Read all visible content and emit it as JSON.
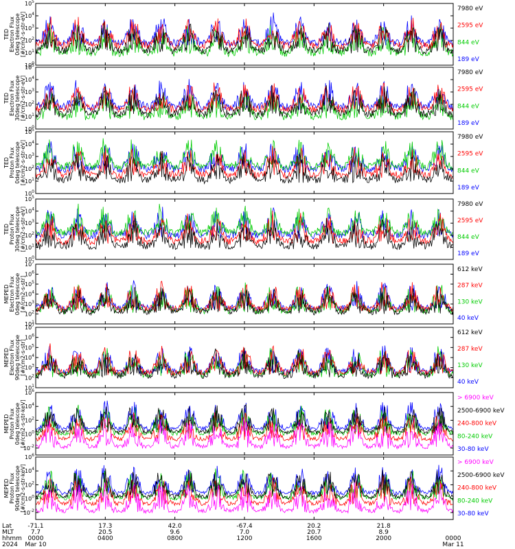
{
  "chart_data": [
    {
      "type": "line",
      "ylabel": [
        "TED",
        "Electron Flux",
        "0deg telescope",
        "[#/cm2-s-str-eV]"
      ],
      "ylim": [
        1,
        100000
      ],
      "log": true,
      "tick_labels": [
        "10^0",
        "10^1",
        "10^2",
        "10^3",
        "10^4",
        "10^5"
      ],
      "series": [
        {
          "name": "7980 eV",
          "color": "#000000"
        },
        {
          "name": "2595 eV",
          "color": "#ff0000"
        },
        {
          "name": "844 eV",
          "color": "#00cc00"
        },
        {
          "name": "189 eV",
          "color": "#0000ff"
        }
      ]
    },
    {
      "type": "line",
      "ylabel": [
        "TED",
        "Electron Flux",
        "30deg telescope",
        "[#/cm2-s-str-eV]"
      ],
      "ylim": [
        1,
        100000
      ],
      "log": true,
      "tick_labels": [
        "10^0",
        "10^1",
        "10^2",
        "10^3",
        "10^4",
        "10^5"
      ],
      "series": [
        {
          "name": "7980 eV",
          "color": "#000000"
        },
        {
          "name": "2595 eV",
          "color": "#ff0000"
        },
        {
          "name": "844 eV",
          "color": "#00cc00"
        },
        {
          "name": "189 eV",
          "color": "#0000ff"
        }
      ]
    },
    {
      "type": "line",
      "ylabel": [
        "TED",
        "Proton Flux",
        "0deg telescope",
        "[#/cm2-s-str-eV]"
      ],
      "ylim": [
        1,
        100000
      ],
      "log": true,
      "tick_labels": [
        "10^0",
        "10^1",
        "10^2",
        "10^3",
        "10^4",
        "10^5"
      ],
      "series": [
        {
          "name": "7980 eV",
          "color": "#000000"
        },
        {
          "name": "2595 eV",
          "color": "#ff0000"
        },
        {
          "name": "844 eV",
          "color": "#00cc00"
        },
        {
          "name": "189 eV",
          "color": "#0000ff"
        }
      ]
    },
    {
      "type": "line",
      "ylabel": [
        "TED",
        "Proton Flux",
        "30deg telescope",
        "[#/cm2-s-str-eV]"
      ],
      "ylim": [
        1,
        100000
      ],
      "log": true,
      "tick_labels": [
        "10^0",
        "10^1",
        "10^2",
        "10^3",
        "10^4",
        "10^5"
      ],
      "series": [
        {
          "name": "7980 eV",
          "color": "#000000"
        },
        {
          "name": "2595 eV",
          "color": "#ff0000"
        },
        {
          "name": "844 eV",
          "color": "#00cc00"
        },
        {
          "name": "189 eV",
          "color": "#0000ff"
        }
      ]
    },
    {
      "type": "line",
      "ylabel": [
        "MEPED",
        "Electron Flux",
        "0deg telescope",
        "[#/cm2-s-str]"
      ],
      "ylim": [
        10,
        10000000
      ],
      "log": true,
      "tick_labels": [
        "10^1",
        "10^2",
        "10^3",
        "10^4",
        "10^5",
        "10^6",
        "10^7"
      ],
      "series": [
        {
          "name": "612 keV",
          "color": "#000000"
        },
        {
          "name": "287 keV",
          "color": "#ff0000"
        },
        {
          "name": "130 keV",
          "color": "#00cc00"
        },
        {
          "name": "40 keV",
          "color": "#0000ff"
        }
      ]
    },
    {
      "type": "line",
      "ylabel": [
        "MEPED",
        "Electron Flux",
        "90deg telescope",
        "[#/cm2-s-str]"
      ],
      "ylim": [
        10,
        10000000
      ],
      "log": true,
      "tick_labels": [
        "10^1",
        "10^2",
        "10^3",
        "10^4",
        "10^5",
        "10^6",
        "10^7"
      ],
      "series": [
        {
          "name": "612 keV",
          "color": "#000000"
        },
        {
          "name": "287 keV",
          "color": "#ff0000"
        },
        {
          "name": "130 keV",
          "color": "#00cc00"
        },
        {
          "name": "40 keV",
          "color": "#0000ff"
        }
      ]
    },
    {
      "type": "line",
      "ylabel": [
        "MEPED",
        "Proton Flux",
        "0deg telescope",
        "[#/cm2-s-str-keV]"
      ],
      "ylim": [
        0.001,
        1000000
      ],
      "log": true,
      "tick_labels": [
        "10^-2",
        "10^0",
        "10^2",
        "10^4",
        "10^6"
      ],
      "series": [
        {
          "name": "> 6900 keV",
          "color": "#ff00ff"
        },
        {
          "name": "2500-6900 keV",
          "color": "#000000"
        },
        {
          "name": "240-800 keV",
          "color": "#ff0000"
        },
        {
          "name": "80-240 keV",
          "color": "#00cc00"
        },
        {
          "name": "30-80 keV",
          "color": "#0000ff"
        }
      ]
    },
    {
      "type": "line",
      "ylabel": [
        "MEPED",
        "Proton Flux",
        "90deg telescope",
        "[#/cm2-s-str-keV]"
      ],
      "ylim": [
        0.001,
        1000000
      ],
      "log": true,
      "tick_labels": [
        "10^-2",
        "10^0",
        "10^2",
        "10^4",
        "10^6"
      ],
      "series": [
        {
          "name": "> 6900 keV",
          "color": "#ff00ff"
        },
        {
          "name": "2500-6900 keV",
          "color": "#000000"
        },
        {
          "name": "240-800 keV",
          "color": "#ff0000"
        },
        {
          "name": "80-240 keV",
          "color": "#00cc00"
        },
        {
          "name": "30-80 keV",
          "color": "#0000ff"
        }
      ]
    }
  ],
  "xaxis": {
    "row_labels": [
      "Lat",
      "MLT",
      "hhmm",
      "2024"
    ],
    "ticks": [
      {
        "hours": 0,
        "lat": "-71.1",
        "mlt": "7.7",
        "hhmm": "0000",
        "date": "Mar 10"
      },
      {
        "hours": 4,
        "lat": "17.3",
        "mlt": "20.5",
        "hhmm": "0400",
        "date": ""
      },
      {
        "hours": 8,
        "lat": "42.0",
        "mlt": "9.6",
        "hhmm": "0800",
        "date": ""
      },
      {
        "hours": 12,
        "lat": "-67.4",
        "mlt": "7.0",
        "hhmm": "1200",
        "date": ""
      },
      {
        "hours": 16,
        "lat": "20.2",
        "mlt": "20.7",
        "hhmm": "1600",
        "date": ""
      },
      {
        "hours": 20,
        "lat": "21.8",
        "mlt": "8.9",
        "hhmm": "2000",
        "date": ""
      },
      {
        "hours": 24,
        "lat": "",
        "mlt": "",
        "hhmm": "0000",
        "date": "Mar 11"
      }
    ],
    "xlim_hours": [
      0,
      24
    ]
  }
}
